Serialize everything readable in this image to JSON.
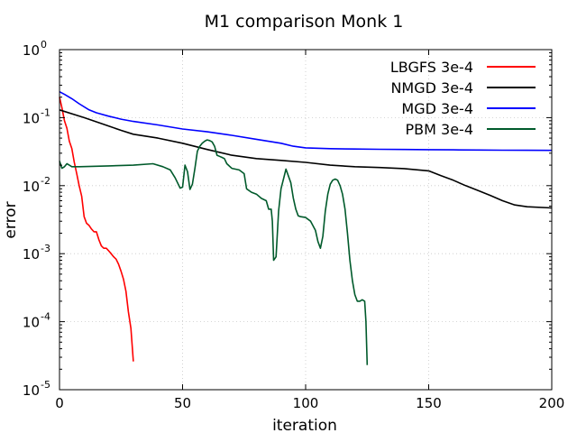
{
  "chart_data": {
    "type": "line",
    "title": "M1 comparison Monk 1",
    "xlabel": "iteration",
    "ylabel": "error",
    "yscale": "log",
    "xlim": [
      0,
      200
    ],
    "ylim": [
      1e-05,
      1
    ],
    "grid": true,
    "legend_position": "top-right",
    "xticks": [
      "0",
      "50",
      "100",
      "150",
      "200"
    ],
    "yticks": [
      {
        "base": "10",
        "exp": "0"
      },
      {
        "base": "10",
        "exp": "-1"
      },
      {
        "base": "10",
        "exp": "-2"
      },
      {
        "base": "10",
        "exp": "-3"
      },
      {
        "base": "10",
        "exp": "-4"
      },
      {
        "base": "10",
        "exp": "-5"
      }
    ],
    "series": [
      {
        "name": "LBGFS 3e-4",
        "color": "#ff0000",
        "x": [
          0,
          1,
          2,
          3,
          4,
          5,
          6,
          7,
          8,
          9,
          10,
          11,
          12,
          13,
          14,
          15,
          16,
          17,
          18,
          19,
          20,
          21,
          22,
          23,
          24,
          25,
          26,
          27,
          28,
          29,
          30
        ],
        "y": [
          0.2,
          0.14,
          0.09,
          0.07,
          0.045,
          0.035,
          0.022,
          0.015,
          0.01,
          0.007,
          0.0035,
          0.0028,
          0.0026,
          0.0023,
          0.0021,
          0.0021,
          0.0016,
          0.0013,
          0.0012,
          0.0012,
          0.0011,
          0.001,
          0.0009,
          0.00083,
          0.0007,
          0.00055,
          0.00042,
          0.00028,
          0.00014,
          8e-05,
          2.6e-05
        ]
      },
      {
        "name": "NMGD 3e-4",
        "color": "#000000",
        "x": [
          0,
          10,
          20,
          25,
          30,
          40,
          50,
          60,
          70,
          80,
          90,
          100,
          110,
          120,
          130,
          140,
          150,
          155,
          160,
          165,
          170,
          175,
          180,
          185,
          190,
          200
        ],
        "y": [
          0.13,
          0.1,
          0.075,
          0.065,
          0.057,
          0.05,
          0.042,
          0.034,
          0.028,
          0.025,
          0.0235,
          0.022,
          0.02,
          0.019,
          0.0185,
          0.0178,
          0.0165,
          0.014,
          0.012,
          0.01,
          0.0085,
          0.0072,
          0.006,
          0.0052,
          0.0049,
          0.0047
        ]
      },
      {
        "name": "MGD 3e-4",
        "color": "#0000ff",
        "x": [
          0,
          2,
          5,
          8,
          12,
          15,
          20,
          25,
          30,
          40,
          50,
          60,
          70,
          80,
          90,
          95,
          100,
          110,
          120,
          130,
          140,
          150,
          160,
          170,
          180,
          190,
          200
        ],
        "y": [
          0.24,
          0.22,
          0.19,
          0.16,
          0.13,
          0.118,
          0.105,
          0.095,
          0.088,
          0.078,
          0.068,
          0.062,
          0.055,
          0.048,
          0.042,
          0.038,
          0.036,
          0.035,
          0.0345,
          0.0342,
          0.034,
          0.0338,
          0.0336,
          0.0334,
          0.0332,
          0.0331,
          0.033
        ]
      },
      {
        "name": "PBM 3e-4",
        "color": "#005a2b",
        "x": [
          0,
          1,
          2,
          3,
          4,
          5,
          6,
          7,
          8,
          20,
          30,
          38,
          42,
          45,
          47,
          49,
          50,
          51,
          52,
          53,
          54,
          55,
          56,
          57,
          58,
          59,
          60,
          61,
          62,
          63,
          64,
          65,
          66,
          67,
          68,
          70,
          73,
          75,
          76,
          78,
          80,
          82,
          84,
          85,
          86,
          86.5,
          87,
          88,
          89,
          90,
          92,
          94,
          95,
          96,
          97,
          98,
          100,
          102,
          104,
          105,
          106,
          107,
          108,
          109,
          110,
          111,
          112,
          113,
          114,
          115,
          116,
          117,
          118,
          119,
          120,
          121,
          122,
          123,
          124,
          124.5,
          125
        ],
        "y": [
          0.023,
          0.018,
          0.019,
          0.021,
          0.02,
          0.019,
          0.019,
          0.019,
          0.019,
          0.0195,
          0.02,
          0.021,
          0.019,
          0.017,
          0.013,
          0.0092,
          0.0095,
          0.02,
          0.016,
          0.0088,
          0.0105,
          0.018,
          0.032,
          0.038,
          0.042,
          0.045,
          0.047,
          0.046,
          0.044,
          0.038,
          0.028,
          0.027,
          0.026,
          0.025,
          0.021,
          0.018,
          0.017,
          0.015,
          0.009,
          0.008,
          0.0075,
          0.0065,
          0.006,
          0.0045,
          0.0045,
          0.003,
          0.0008,
          0.0009,
          0.0042,
          0.009,
          0.0175,
          0.011,
          0.0066,
          0.0045,
          0.0036,
          0.0035,
          0.0034,
          0.003,
          0.0022,
          0.0015,
          0.0012,
          0.0018,
          0.0042,
          0.0075,
          0.0105,
          0.012,
          0.0125,
          0.012,
          0.01,
          0.0075,
          0.0045,
          0.002,
          0.0008,
          0.0004,
          0.00025,
          0.0002,
          0.0002,
          0.00021,
          0.0002,
          0.0001,
          2.3e-05
        ]
      }
    ]
  }
}
